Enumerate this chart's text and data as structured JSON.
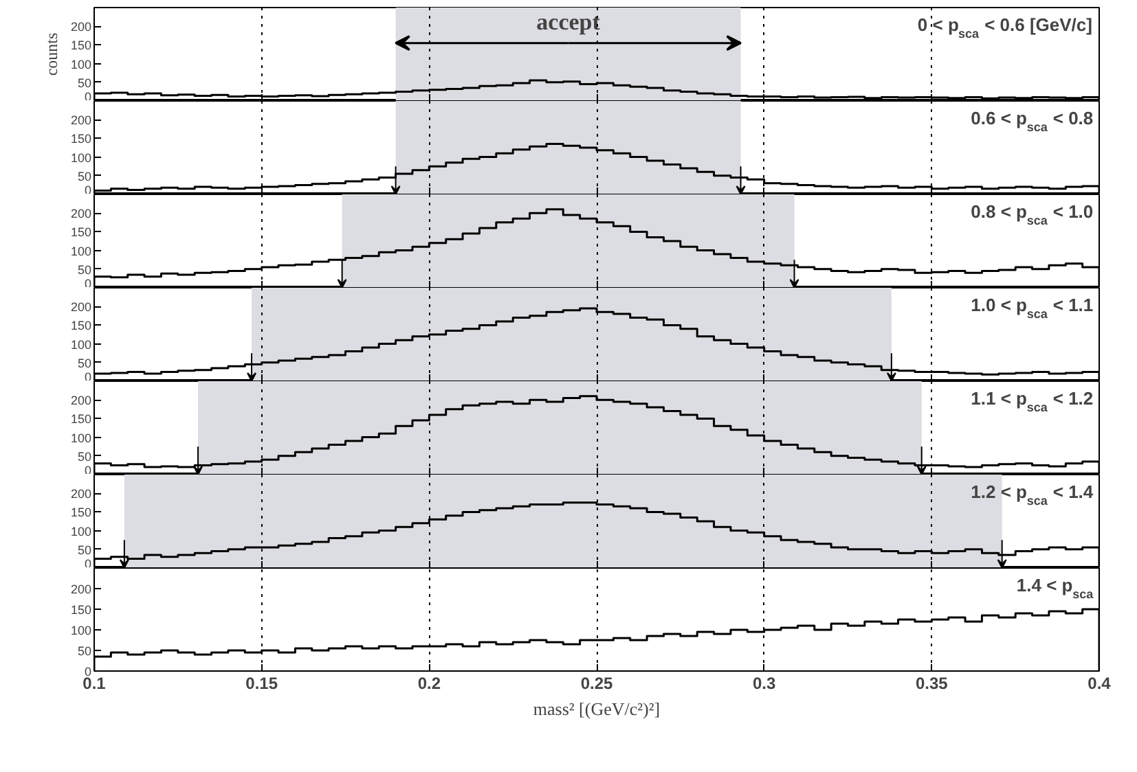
{
  "chart_data": [
    {
      "type": "histogram",
      "ylabel": "counts",
      "color": "#000000",
      "xlim": [
        0.1,
        0.4
      ],
      "xticks": [
        0.1,
        0.15,
        0.2,
        0.25,
        0.3,
        0.35,
        0.4
      ],
      "ylim": [
        0,
        250
      ],
      "yticks": [
        0,
        50,
        100,
        150,
        200
      ],
      "tick_labels": "y",
      "grid": "x",
      "annotations": [
        "0 < p$_{sca}$ < 0.6 [GeV/c]"
      ],
      "bands": [
        {
          "axis": "x",
          "from": 0.19,
          "to": 0.293,
          "label": "accept",
          "color": "#dcdde2"
        }
      ],
      "bins": [
        0.1,
        0.105,
        0.11,
        0.115,
        0.12,
        0.125,
        0.13,
        0.135,
        0.14,
        0.145,
        0.15,
        0.155,
        0.16,
        0.165,
        0.17,
        0.175,
        0.18,
        0.185,
        0.19,
        0.195,
        0.2,
        0.205,
        0.21,
        0.215,
        0.22,
        0.225,
        0.23,
        0.235,
        0.24,
        0.245,
        0.25,
        0.255,
        0.26,
        0.265,
        0.27,
        0.275,
        0.28,
        0.285,
        0.29,
        0.295,
        0.3,
        0.305,
        0.31,
        0.315,
        0.32,
        0.325,
        0.33,
        0.335,
        0.34,
        0.345,
        0.35,
        0.355,
        0.36,
        0.365,
        0.37,
        0.375,
        0.38,
        0.385,
        0.39,
        0.395,
        0.4
      ],
      "values": [
        20,
        22,
        18,
        20,
        15,
        17,
        14,
        16,
        12,
        14,
        12,
        14,
        15,
        13,
        16,
        18,
        20,
        22,
        25,
        28,
        30,
        32,
        35,
        40,
        42,
        48,
        55,
        50,
        52,
        45,
        48,
        42,
        38,
        35,
        28,
        25,
        20,
        18,
        14,
        12,
        12,
        10,
        12,
        9,
        10,
        11,
        8,
        10,
        9,
        10,
        9,
        8,
        10,
        7,
        9,
        8,
        10,
        9,
        8,
        10
      ]
    },
    {
      "type": "histogram",
      "color": "#000000",
      "xlim": [
        0.1,
        0.4
      ],
      "xticks": [
        0.1,
        0.15,
        0.2,
        0.25,
        0.3,
        0.35,
        0.4
      ],
      "ylim": [
        0,
        250
      ],
      "yticks": [
        0,
        50,
        100,
        150,
        200
      ],
      "tick_labels": "y",
      "grid": "x",
      "annotations": [
        "0.6 < p$_{sca}$ < 0.8"
      ],
      "bands": [
        {
          "axis": "x",
          "from": 0.19,
          "to": 0.293,
          "color": "#dcdde2"
        }
      ],
      "bins": [
        0.1,
        0.105,
        0.11,
        0.115,
        0.12,
        0.125,
        0.13,
        0.135,
        0.14,
        0.145,
        0.15,
        0.155,
        0.16,
        0.165,
        0.17,
        0.175,
        0.18,
        0.185,
        0.19,
        0.195,
        0.2,
        0.205,
        0.21,
        0.215,
        0.22,
        0.225,
        0.23,
        0.235,
        0.24,
        0.245,
        0.25,
        0.255,
        0.26,
        0.265,
        0.27,
        0.275,
        0.28,
        0.285,
        0.29,
        0.295,
        0.3,
        0.305,
        0.31,
        0.315,
        0.32,
        0.325,
        0.33,
        0.335,
        0.34,
        0.345,
        0.35,
        0.355,
        0.36,
        0.365,
        0.37,
        0.375,
        0.38,
        0.385,
        0.39,
        0.395,
        0.4
      ],
      "values": [
        10,
        15,
        12,
        15,
        18,
        15,
        20,
        18,
        15,
        18,
        20,
        22,
        25,
        28,
        30,
        35,
        40,
        45,
        55,
        65,
        75,
        85,
        95,
        100,
        110,
        120,
        128,
        135,
        130,
        125,
        118,
        110,
        100,
        90,
        80,
        70,
        60,
        50,
        45,
        40,
        30,
        28,
        25,
        22,
        20,
        18,
        20,
        22,
        18,
        20,
        15,
        18,
        20,
        15,
        18,
        20,
        18,
        15,
        20,
        22
      ]
    },
    {
      "type": "histogram",
      "color": "#000000",
      "xlim": [
        0.1,
        0.4
      ],
      "xticks": [
        0.1,
        0.15,
        0.2,
        0.25,
        0.3,
        0.35,
        0.4
      ],
      "ylim": [
        0,
        250
      ],
      "yticks": [
        0,
        50,
        100,
        150,
        200
      ],
      "tick_labels": "y",
      "grid": "x",
      "annotations": [
        "0.8 < p$_{sca}$ < 1.0"
      ],
      "bands": [
        {
          "axis": "x",
          "from": 0.174,
          "to": 0.309,
          "color": "#dcdde2"
        }
      ],
      "bins": [
        0.1,
        0.105,
        0.11,
        0.115,
        0.12,
        0.125,
        0.13,
        0.135,
        0.14,
        0.145,
        0.15,
        0.155,
        0.16,
        0.165,
        0.17,
        0.175,
        0.18,
        0.185,
        0.19,
        0.195,
        0.2,
        0.205,
        0.21,
        0.215,
        0.22,
        0.225,
        0.23,
        0.235,
        0.24,
        0.245,
        0.25,
        0.255,
        0.26,
        0.265,
        0.27,
        0.275,
        0.28,
        0.285,
        0.29,
        0.295,
        0.3,
        0.305,
        0.31,
        0.315,
        0.32,
        0.325,
        0.33,
        0.335,
        0.34,
        0.345,
        0.35,
        0.355,
        0.36,
        0.365,
        0.37,
        0.375,
        0.38,
        0.385,
        0.39,
        0.395,
        0.4
      ],
      "values": [
        30,
        28,
        35,
        30,
        38,
        35,
        40,
        42,
        45,
        50,
        55,
        60,
        62,
        70,
        75,
        80,
        85,
        95,
        100,
        110,
        120,
        130,
        145,
        160,
        175,
        185,
        200,
        210,
        195,
        185,
        175,
        165,
        150,
        135,
        125,
        110,
        100,
        90,
        80,
        70,
        65,
        60,
        55,
        50,
        45,
        42,
        45,
        50,
        48,
        40,
        42,
        45,
        40,
        45,
        48,
        55,
        50,
        60,
        65,
        55
      ]
    },
    {
      "type": "histogram",
      "color": "#000000",
      "xlim": [
        0.1,
        0.4
      ],
      "xticks": [
        0.1,
        0.15,
        0.2,
        0.25,
        0.3,
        0.35,
        0.4
      ],
      "ylim": [
        0,
        250
      ],
      "yticks": [
        0,
        50,
        100,
        150,
        200
      ],
      "tick_labels": "y",
      "grid": "x",
      "annotations": [
        "1.0 < p$_{sca}$ < 1.1"
      ],
      "bands": [
        {
          "axis": "x",
          "from": 0.147,
          "to": 0.338,
          "color": "#dcdde2"
        }
      ],
      "bins": [
        0.1,
        0.105,
        0.11,
        0.115,
        0.12,
        0.125,
        0.13,
        0.135,
        0.14,
        0.145,
        0.15,
        0.155,
        0.16,
        0.165,
        0.17,
        0.175,
        0.18,
        0.185,
        0.19,
        0.195,
        0.2,
        0.205,
        0.21,
        0.215,
        0.22,
        0.225,
        0.23,
        0.235,
        0.24,
        0.245,
        0.25,
        0.255,
        0.26,
        0.265,
        0.27,
        0.275,
        0.28,
        0.285,
        0.29,
        0.295,
        0.3,
        0.305,
        0.31,
        0.315,
        0.32,
        0.325,
        0.33,
        0.335,
        0.34,
        0.345,
        0.35,
        0.355,
        0.36,
        0.365,
        0.37,
        0.375,
        0.38,
        0.385,
        0.39,
        0.395,
        0.4
      ],
      "values": [
        20,
        22,
        25,
        20,
        25,
        28,
        30,
        35,
        40,
        45,
        50,
        55,
        60,
        65,
        70,
        80,
        90,
        100,
        110,
        120,
        125,
        135,
        140,
        150,
        160,
        170,
        175,
        185,
        190,
        195,
        185,
        180,
        170,
        165,
        150,
        140,
        120,
        110,
        100,
        90,
        80,
        70,
        65,
        55,
        50,
        45,
        40,
        30,
        28,
        25,
        25,
        22,
        20,
        18,
        20,
        22,
        25,
        20,
        22,
        25
      ]
    },
    {
      "type": "histogram",
      "color": "#000000",
      "xlim": [
        0.1,
        0.4
      ],
      "xticks": [
        0.1,
        0.15,
        0.2,
        0.25,
        0.3,
        0.35,
        0.4
      ],
      "ylim": [
        0,
        250
      ],
      "yticks": [
        0,
        50,
        100,
        150,
        200
      ],
      "tick_labels": "y",
      "grid": "x",
      "annotations": [
        "1.1 < p$_{sca}$ < 1.2"
      ],
      "bands": [
        {
          "axis": "x",
          "from": 0.131,
          "to": 0.347,
          "color": "#dcdde2"
        }
      ],
      "bins": [
        0.1,
        0.105,
        0.11,
        0.115,
        0.12,
        0.125,
        0.13,
        0.135,
        0.14,
        0.145,
        0.15,
        0.155,
        0.16,
        0.165,
        0.17,
        0.175,
        0.18,
        0.185,
        0.19,
        0.195,
        0.2,
        0.205,
        0.21,
        0.215,
        0.22,
        0.225,
        0.23,
        0.235,
        0.24,
        0.245,
        0.25,
        0.255,
        0.26,
        0.265,
        0.27,
        0.275,
        0.28,
        0.285,
        0.29,
        0.295,
        0.3,
        0.305,
        0.31,
        0.315,
        0.32,
        0.325,
        0.33,
        0.335,
        0.34,
        0.345,
        0.35,
        0.355,
        0.36,
        0.365,
        0.37,
        0.375,
        0.38,
        0.385,
        0.39,
        0.395,
        0.4
      ],
      "values": [
        30,
        25,
        28,
        20,
        22,
        20,
        25,
        28,
        30,
        35,
        40,
        50,
        60,
        70,
        80,
        90,
        100,
        110,
        130,
        145,
        160,
        175,
        185,
        190,
        195,
        190,
        200,
        195,
        205,
        210,
        200,
        195,
        190,
        180,
        170,
        160,
        150,
        130,
        120,
        105,
        90,
        80,
        70,
        60,
        50,
        45,
        40,
        35,
        30,
        25,
        25,
        22,
        20,
        25,
        28,
        30,
        25,
        22,
        30,
        35
      ]
    },
    {
      "type": "histogram",
      "color": "#000000",
      "xlim": [
        0.1,
        0.4
      ],
      "xticks": [
        0.1,
        0.15,
        0.2,
        0.25,
        0.3,
        0.35,
        0.4
      ],
      "ylim": [
        0,
        250
      ],
      "yticks": [
        0,
        50,
        100,
        150,
        200
      ],
      "tick_labels": "y",
      "grid": "x",
      "annotations": [
        "1.2 < p$_{sca}$ < 1.4"
      ],
      "bands": [
        {
          "axis": "x",
          "from": 0.109,
          "to": 0.371,
          "color": "#dcdde2"
        }
      ],
      "bins": [
        0.1,
        0.105,
        0.11,
        0.115,
        0.12,
        0.125,
        0.13,
        0.135,
        0.14,
        0.145,
        0.15,
        0.155,
        0.16,
        0.165,
        0.17,
        0.175,
        0.18,
        0.185,
        0.19,
        0.195,
        0.2,
        0.205,
        0.21,
        0.215,
        0.22,
        0.225,
        0.23,
        0.235,
        0.24,
        0.245,
        0.25,
        0.255,
        0.26,
        0.265,
        0.27,
        0.275,
        0.28,
        0.285,
        0.29,
        0.295,
        0.3,
        0.305,
        0.31,
        0.315,
        0.32,
        0.325,
        0.33,
        0.335,
        0.34,
        0.345,
        0.35,
        0.355,
        0.36,
        0.365,
        0.37,
        0.375,
        0.38,
        0.385,
        0.39,
        0.395,
        0.4
      ],
      "values": [
        25,
        30,
        25,
        35,
        30,
        35,
        40,
        45,
        50,
        55,
        55,
        60,
        65,
        70,
        80,
        85,
        95,
        100,
        110,
        120,
        130,
        140,
        150,
        155,
        160,
        165,
        170,
        170,
        175,
        175,
        170,
        165,
        160,
        150,
        145,
        135,
        125,
        110,
        100,
        95,
        85,
        75,
        70,
        65,
        55,
        50,
        50,
        45,
        40,
        45,
        40,
        45,
        50,
        40,
        35,
        45,
        50,
        55,
        50,
        55
      ]
    },
    {
      "type": "histogram",
      "xlabel": "mass² [(GeV/c²)²]",
      "color": "#000000",
      "xlim": [
        0.1,
        0.4
      ],
      "xticks": [
        0.1,
        0.15,
        0.2,
        0.25,
        0.3,
        0.35,
        0.4
      ],
      "ylim": [
        0,
        250
      ],
      "yticks": [
        0,
        50,
        100,
        150,
        200
      ],
      "grid": "x",
      "annotations": [
        "1.4 < p$_{sca}$"
      ],
      "bins": [
        0.1,
        0.105,
        0.11,
        0.115,
        0.12,
        0.125,
        0.13,
        0.135,
        0.14,
        0.145,
        0.15,
        0.155,
        0.16,
        0.165,
        0.17,
        0.175,
        0.18,
        0.185,
        0.19,
        0.195,
        0.2,
        0.205,
        0.21,
        0.215,
        0.22,
        0.225,
        0.23,
        0.235,
        0.24,
        0.245,
        0.25,
        0.255,
        0.26,
        0.265,
        0.27,
        0.275,
        0.28,
        0.285,
        0.29,
        0.295,
        0.3,
        0.305,
        0.31,
        0.315,
        0.32,
        0.325,
        0.33,
        0.335,
        0.34,
        0.345,
        0.35,
        0.355,
        0.36,
        0.365,
        0.37,
        0.375,
        0.38,
        0.385,
        0.39,
        0.395,
        0.4
      ],
      "values": [
        35,
        45,
        40,
        45,
        50,
        45,
        40,
        45,
        50,
        45,
        50,
        45,
        55,
        50,
        55,
        60,
        55,
        60,
        55,
        60,
        60,
        65,
        60,
        70,
        65,
        70,
        75,
        70,
        65,
        75,
        75,
        80,
        75,
        85,
        90,
        85,
        95,
        90,
        100,
        95,
        100,
        105,
        110,
        100,
        115,
        110,
        120,
        115,
        125,
        120,
        125,
        130,
        120,
        135,
        130,
        140,
        135,
        145,
        140,
        150
      ]
    }
  ]
}
